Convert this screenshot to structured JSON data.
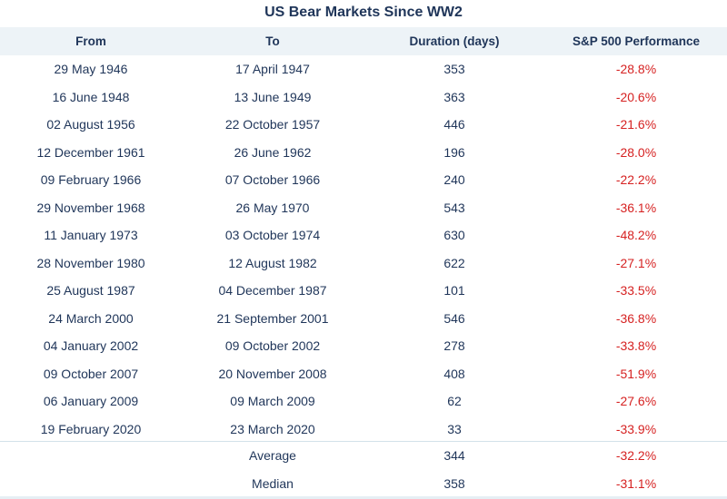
{
  "title": "US Bear Markets Since WW2",
  "columns": [
    "From",
    "To",
    "Duration (days)",
    "S&P 500 Performance"
  ],
  "rows": [
    [
      "29 May 1946",
      "17 April 1947",
      "353",
      "-28.8%"
    ],
    [
      "16 June 1948",
      "13 June 1949",
      "363",
      "-20.6%"
    ],
    [
      "02 August 1956",
      "22 October 1957",
      "446",
      "-21.6%"
    ],
    [
      "12 December 1961",
      "26 June 1962",
      "196",
      "-28.0%"
    ],
    [
      "09 February 1966",
      "07 October 1966",
      "240",
      "-22.2%"
    ],
    [
      "29 November 1968",
      "26 May 1970",
      "543",
      "-36.1%"
    ],
    [
      "11 January 1973",
      "03 October 1974",
      "630",
      "-48.2%"
    ],
    [
      "28 November 1980",
      "12 August 1982",
      "622",
      "-27.1%"
    ],
    [
      "25 August 1987",
      "04 December 1987",
      "101",
      "-33.5%"
    ],
    [
      "24 March 2000",
      "21 September 2001",
      "546",
      "-36.8%"
    ],
    [
      "04 January 2002",
      "09 October 2002",
      "278",
      "-33.8%"
    ],
    [
      "09 October 2007",
      "20 November 2008",
      "408",
      "-51.9%"
    ],
    [
      "06 January 2009",
      "09 March 2009",
      "62",
      "-27.6%"
    ],
    [
      "19 February 2020",
      "23 March 2020",
      "33",
      "-33.9%"
    ]
  ],
  "summary": [
    [
      "",
      "Average",
      "344",
      "-32.2%"
    ],
    [
      "",
      "Median",
      "358",
      "-31.1%"
    ]
  ],
  "colors": {
    "text": "#1f3559",
    "negative": "#d62222",
    "header_bg": "#edf3f7"
  }
}
